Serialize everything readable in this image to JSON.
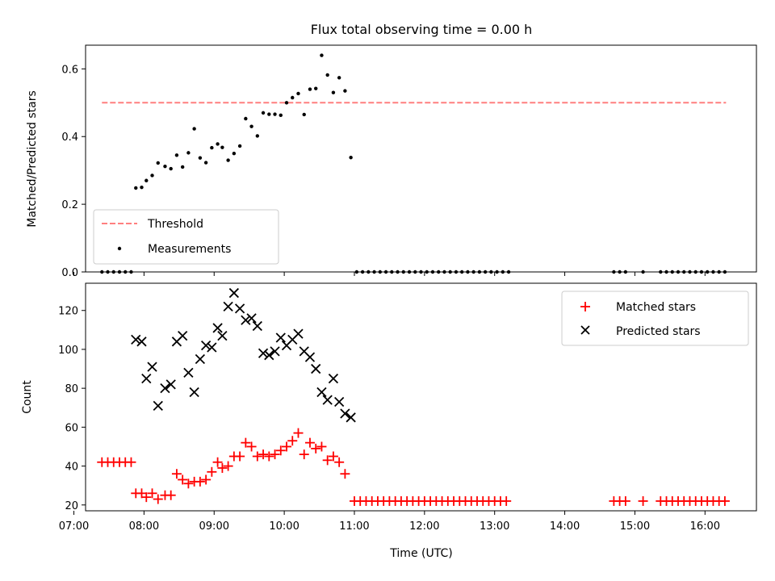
{
  "title": "Flux total observing time = 0.00 h",
  "chart_data": [
    {
      "type": "scatter",
      "ylabel": "Matched/Predicted stars",
      "xlabel": "",
      "xlim": [
        "07:10",
        "16:44"
      ],
      "ylim": [
        0,
        0.67
      ],
      "yticks": [
        0.0,
        0.2,
        0.4,
        0.6
      ],
      "ytick_labels": [
        "0.0",
        "0.2",
        "0.4",
        "0.6"
      ],
      "legend": {
        "position": "lower-left",
        "entries": [
          "Threshold",
          "Measurements"
        ]
      },
      "threshold": {
        "name": "Threshold",
        "value": 0.5,
        "x_range": [
          "07:24",
          "16:18"
        ],
        "color": "#ff7f7f",
        "style": "dashed"
      },
      "series": [
        {
          "name": "Measurements",
          "color": "#000000",
          "marker": "dot",
          "points": [
            [
              "07:24",
              0.0
            ],
            [
              "07:29",
              0.0
            ],
            [
              "07:34",
              0.0
            ],
            [
              "07:39",
              0.0
            ],
            [
              "07:44",
              0.0
            ],
            [
              "07:49",
              0.0
            ],
            [
              "07:53",
              0.248
            ],
            [
              "07:58",
              0.25
            ],
            [
              "08:02",
              0.27
            ],
            [
              "08:07",
              0.285
            ],
            [
              "08:12",
              0.322
            ],
            [
              "08:18",
              0.312
            ],
            [
              "08:23",
              0.305
            ],
            [
              "08:28",
              0.345
            ],
            [
              "08:33",
              0.31
            ],
            [
              "08:38",
              0.352
            ],
            [
              "08:43",
              0.423
            ],
            [
              "08:48",
              0.337
            ],
            [
              "08:53",
              0.323
            ],
            [
              "08:58",
              0.367
            ],
            [
              "09:03",
              0.378
            ],
            [
              "09:07",
              0.368
            ],
            [
              "09:12",
              0.33
            ],
            [
              "09:17",
              0.35
            ],
            [
              "09:22",
              0.372
            ],
            [
              "09:27",
              0.453
            ],
            [
              "09:32",
              0.43
            ],
            [
              "09:37",
              0.402
            ],
            [
              "09:42",
              0.47
            ],
            [
              "09:47",
              0.466
            ],
            [
              "09:52",
              0.466
            ],
            [
              "09:57",
              0.463
            ],
            [
              "10:02",
              0.5
            ],
            [
              "10:07",
              0.515
            ],
            [
              "10:12",
              0.527
            ],
            [
              "10:17",
              0.465
            ],
            [
              "10:22",
              0.54
            ],
            [
              "10:27",
              0.542
            ],
            [
              "10:32",
              0.64
            ],
            [
              "10:37",
              0.582
            ],
            [
              "10:42",
              0.53
            ],
            [
              "10:47",
              0.574
            ],
            [
              "10:52",
              0.535
            ],
            [
              "10:57",
              0.338
            ],
            [
              "11:02",
              0.0
            ],
            [
              "11:07",
              0.0
            ],
            [
              "11:12",
              0.0
            ],
            [
              "11:17",
              0.0
            ],
            [
              "11:22",
              0.0
            ],
            [
              "11:27",
              0.0
            ],
            [
              "11:32",
              0.0
            ],
            [
              "11:37",
              0.0
            ],
            [
              "11:42",
              0.0
            ],
            [
              "11:47",
              0.0
            ],
            [
              "11:52",
              0.0
            ],
            [
              "11:57",
              0.0
            ],
            [
              "12:02",
              0.0
            ],
            [
              "12:07",
              0.0
            ],
            [
              "12:12",
              0.0
            ],
            [
              "12:17",
              0.0
            ],
            [
              "12:22",
              0.0
            ],
            [
              "12:27",
              0.0
            ],
            [
              "12:32",
              0.0
            ],
            [
              "12:37",
              0.0
            ],
            [
              "12:42",
              0.0
            ],
            [
              "12:47",
              0.0
            ],
            [
              "12:52",
              0.0
            ],
            [
              "12:57",
              0.0
            ],
            [
              "13:02",
              0.0
            ],
            [
              "13:07",
              0.0
            ],
            [
              "13:12",
              0.0
            ],
            [
              "14:42",
              0.0
            ],
            [
              "14:47",
              0.0
            ],
            [
              "14:52",
              0.0
            ],
            [
              "15:07",
              0.0
            ],
            [
              "15:22",
              0.0
            ],
            [
              "15:27",
              0.0
            ],
            [
              "15:32",
              0.0
            ],
            [
              "15:37",
              0.0
            ],
            [
              "15:42",
              0.0
            ],
            [
              "15:47",
              0.0
            ],
            [
              "15:52",
              0.0
            ],
            [
              "15:57",
              0.0
            ],
            [
              "16:02",
              0.0
            ],
            [
              "16:07",
              0.0
            ],
            [
              "16:12",
              0.0
            ],
            [
              "16:17",
              0.0
            ]
          ]
        }
      ]
    },
    {
      "type": "scatter",
      "ylabel": "Count",
      "xlabel": "Time (UTC)",
      "xlim": [
        "07:10",
        "16:44"
      ],
      "ylim": [
        17,
        134
      ],
      "yticks": [
        20,
        40,
        60,
        80,
        100,
        120
      ],
      "ytick_labels": [
        "20",
        "40",
        "60",
        "80",
        "100",
        "120"
      ],
      "xticks": [
        "07:00",
        "08:00",
        "09:00",
        "10:00",
        "11:00",
        "12:00",
        "13:00",
        "14:00",
        "15:00",
        "16:00"
      ],
      "legend": {
        "position": "upper-right",
        "entries": [
          "Matched stars",
          "Predicted stars"
        ]
      },
      "series": [
        {
          "name": "Matched stars",
          "color": "#ff0000",
          "marker": "plus",
          "points": [
            [
              "07:24",
              42
            ],
            [
              "07:29",
              42
            ],
            [
              "07:34",
              42
            ],
            [
              "07:39",
              42
            ],
            [
              "07:44",
              42
            ],
            [
              "07:49",
              42
            ],
            [
              "07:53",
              26
            ],
            [
              "07:58",
              26
            ],
            [
              "08:02",
              24
            ],
            [
              "08:07",
              26
            ],
            [
              "08:12",
              23
            ],
            [
              "08:18",
              25
            ],
            [
              "08:23",
              25
            ],
            [
              "08:28",
              36
            ],
            [
              "08:33",
              33
            ],
            [
              "08:38",
              31
            ],
            [
              "08:43",
              32
            ],
            [
              "08:48",
              32
            ],
            [
              "08:53",
              33
            ],
            [
              "08:58",
              37
            ],
            [
              "09:03",
              42
            ],
            [
              "09:07",
              39
            ],
            [
              "09:12",
              40
            ],
            [
              "09:17",
              45
            ],
            [
              "09:22",
              45
            ],
            [
              "09:27",
              52
            ],
            [
              "09:32",
              50
            ],
            [
              "09:37",
              45
            ],
            [
              "09:42",
              46
            ],
            [
              "09:47",
              45
            ],
            [
              "09:52",
              46
            ],
            [
              "09:57",
              48
            ],
            [
              "10:02",
              50
            ],
            [
              "10:07",
              53
            ],
            [
              "10:12",
              57
            ],
            [
              "10:17",
              46
            ],
            [
              "10:22",
              52
            ],
            [
              "10:27",
              49
            ],
            [
              "10:32",
              50
            ],
            [
              "10:37",
              43
            ],
            [
              "10:42",
              45
            ],
            [
              "10:47",
              42
            ],
            [
              "10:52",
              36
            ],
            [
              "11:00",
              22
            ],
            [
              "11:05",
              22
            ],
            [
              "11:10",
              22
            ],
            [
              "11:15",
              22
            ],
            [
              "11:20",
              22
            ],
            [
              "11:25",
              22
            ],
            [
              "11:30",
              22
            ],
            [
              "11:35",
              22
            ],
            [
              "11:40",
              22
            ],
            [
              "11:45",
              22
            ],
            [
              "11:50",
              22
            ],
            [
              "11:55",
              22
            ],
            [
              "12:00",
              22
            ],
            [
              "12:05",
              22
            ],
            [
              "12:10",
              22
            ],
            [
              "12:15",
              22
            ],
            [
              "12:20",
              22
            ],
            [
              "12:25",
              22
            ],
            [
              "12:30",
              22
            ],
            [
              "12:35",
              22
            ],
            [
              "12:40",
              22
            ],
            [
              "12:45",
              22
            ],
            [
              "12:50",
              22
            ],
            [
              "12:55",
              22
            ],
            [
              "13:00",
              22
            ],
            [
              "13:05",
              22
            ],
            [
              "13:10",
              22
            ],
            [
              "14:42",
              22
            ],
            [
              "14:47",
              22
            ],
            [
              "14:52",
              22
            ],
            [
              "15:07",
              22
            ],
            [
              "15:22",
              22
            ],
            [
              "15:27",
              22
            ],
            [
              "15:32",
              22
            ],
            [
              "15:37",
              22
            ],
            [
              "15:42",
              22
            ],
            [
              "15:47",
              22
            ],
            [
              "15:52",
              22
            ],
            [
              "15:57",
              22
            ],
            [
              "16:02",
              22
            ],
            [
              "16:07",
              22
            ],
            [
              "16:12",
              22
            ],
            [
              "16:17",
              22
            ]
          ]
        },
        {
          "name": "Predicted stars",
          "color": "#000000",
          "marker": "x",
          "points": [
            [
              "07:53",
              105
            ],
            [
              "07:58",
              104
            ],
            [
              "08:02",
              85
            ],
            [
              "08:07",
              91
            ],
            [
              "08:12",
              71
            ],
            [
              "08:18",
              80
            ],
            [
              "08:23",
              82
            ],
            [
              "08:28",
              104
            ],
            [
              "08:33",
              107
            ],
            [
              "08:38",
              88
            ],
            [
              "08:43",
              78
            ],
            [
              "08:48",
              95
            ],
            [
              "08:53",
              102
            ],
            [
              "08:58",
              101
            ],
            [
              "09:03",
              111
            ],
            [
              "09:07",
              107
            ],
            [
              "09:12",
              122
            ],
            [
              "09:17",
              129
            ],
            [
              "09:22",
              121
            ],
            [
              "09:27",
              115
            ],
            [
              "09:32",
              116
            ],
            [
              "09:37",
              112
            ],
            [
              "09:42",
              98
            ],
            [
              "09:47",
              97
            ],
            [
              "09:52",
              99
            ],
            [
              "09:57",
              106
            ],
            [
              "10:02",
              102
            ],
            [
              "10:07",
              105
            ],
            [
              "10:12",
              108
            ],
            [
              "10:17",
              99
            ],
            [
              "10:22",
              96
            ],
            [
              "10:27",
              90
            ],
            [
              "10:32",
              78
            ],
            [
              "10:37",
              74
            ],
            [
              "10:42",
              85
            ],
            [
              "10:47",
              73
            ],
            [
              "10:52",
              67
            ],
            [
              "10:57",
              65
            ]
          ]
        }
      ]
    }
  ]
}
